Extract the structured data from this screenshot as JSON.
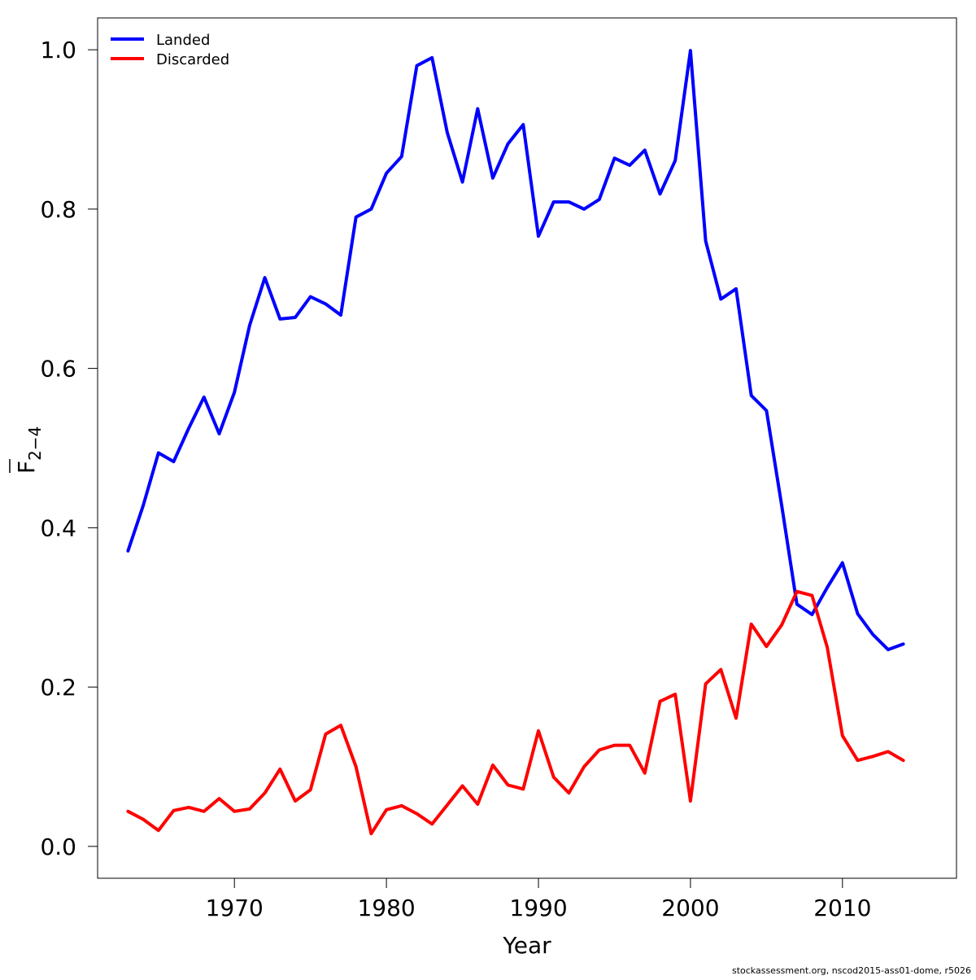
{
  "chart_data": {
    "type": "line",
    "title": "",
    "xlabel": "Year",
    "ylabel": "F",
    "ylabel_subscript": "2−4",
    "xlim": [
      1961,
      2017.5
    ],
    "ylim": [
      -0.04,
      1.04
    ],
    "x_ticks": [
      1970,
      1980,
      1990,
      2000,
      2010
    ],
    "y_ticks": [
      0.0,
      0.2,
      0.4,
      0.6,
      0.8,
      1.0
    ],
    "y_tick_labels": [
      "0.0",
      "0.2",
      "0.4",
      "0.6",
      "0.8",
      "1.0"
    ],
    "grid": false,
    "legend_position": "top-left",
    "x": [
      1963,
      1964,
      1965,
      1966,
      1967,
      1968,
      1969,
      1970,
      1971,
      1972,
      1973,
      1974,
      1975,
      1976,
      1977,
      1978,
      1979,
      1980,
      1981,
      1982,
      1983,
      1984,
      1985,
      1986,
      1987,
      1988,
      1989,
      1990,
      1991,
      1992,
      1993,
      1994,
      1995,
      1996,
      1997,
      1998,
      1999,
      2000,
      2001,
      2002,
      2003,
      2004,
      2005,
      2006,
      2007,
      2008,
      2009,
      2010,
      2011,
      2012,
      2013,
      2014
    ],
    "series": [
      {
        "name": "Landed",
        "color": "#0000ff",
        "values": [
          0.371,
          0.428,
          0.494,
          0.483,
          0.525,
          0.564,
          0.518,
          0.57,
          0.654,
          0.714,
          0.662,
          0.664,
          0.69,
          0.681,
          0.667,
          0.79,
          0.8,
          0.845,
          0.866,
          0.98,
          0.99,
          0.896,
          0.834,
          0.926,
          0.839,
          0.882,
          0.906,
          0.766,
          0.809,
          0.809,
          0.8,
          0.812,
          0.864,
          0.855,
          0.874,
          0.819,
          0.861,
          0.999,
          0.76,
          0.687,
          0.7,
          0.566,
          0.547,
          0.428,
          0.304,
          0.291,
          0.325,
          0.356,
          0.292,
          0.266,
          0.247,
          0.254
        ]
      },
      {
        "name": "Discarded",
        "color": "#ff0000",
        "values": [
          0.044,
          0.034,
          0.02,
          0.045,
          0.049,
          0.044,
          0.06,
          0.044,
          0.047,
          0.067,
          0.097,
          0.057,
          0.071,
          0.141,
          0.152,
          0.1,
          0.016,
          0.046,
          0.051,
          0.041,
          0.028,
          0.052,
          0.076,
          0.053,
          0.102,
          0.077,
          0.072,
          0.145,
          0.087,
          0.067,
          0.1,
          0.121,
          0.127,
          0.127,
          0.092,
          0.182,
          0.191,
          0.057,
          0.204,
          0.222,
          0.161,
          0.279,
          0.251,
          0.278,
          0.32,
          0.315,
          0.25,
          0.139,
          0.108,
          0.113,
          0.119,
          0.108
        ]
      }
    ]
  },
  "footer": "stockassessment.org, nscod2015-ass01-dome, r5026"
}
